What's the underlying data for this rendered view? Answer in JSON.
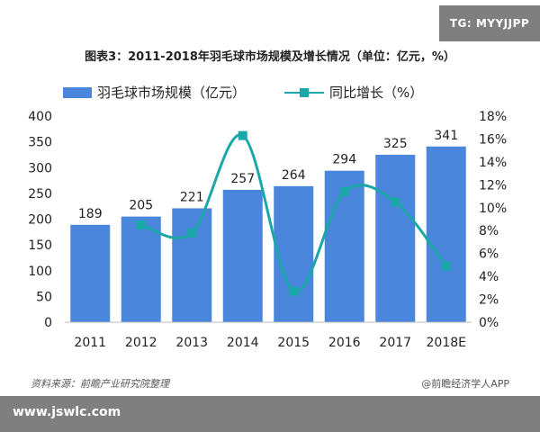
{
  "watermark_tag": "TG: MYYJJPP",
  "chart_data": {
    "type": "bar",
    "title": "图表3：2011-2018年羽毛球市场规模及增长情况（单位：亿元，%）",
    "categories": [
      "2011",
      "2012",
      "2013",
      "2014",
      "2015",
      "2016",
      "2017",
      "2018E"
    ],
    "series": [
      {
        "name": "羽毛球市场规模（亿元）",
        "type": "bar",
        "axis": "left",
        "values": [
          189,
          205,
          221,
          257,
          264,
          294,
          325,
          341
        ],
        "data_labels": [
          "189",
          "205",
          "221",
          "257",
          "264",
          "294",
          "325",
          "341"
        ],
        "color": "#4a86dc"
      },
      {
        "name": "同比增长（%）",
        "type": "line",
        "axis": "right",
        "values": [
          null,
          8.5,
          7.8,
          16.3,
          2.7,
          11.4,
          10.5,
          4.9
        ],
        "color": "#1aa7a7",
        "smooth": true
      }
    ],
    "y_left": {
      "min": 0,
      "max": 400,
      "ticks": [
        "0",
        "50",
        "100",
        "150",
        "200",
        "250",
        "300",
        "350",
        "400"
      ]
    },
    "y_right": {
      "min": 0,
      "max": 18,
      "ticks": [
        "0%",
        "2%",
        "4%",
        "6%",
        "8%",
        "10%",
        "12%",
        "14%",
        "16%",
        "18%"
      ]
    },
    "grid": false,
    "legend_position": "top"
  },
  "source_text": "资料来源：前瞻产业研究院整理",
  "brand_text": "@前瞻经济学人APP",
  "footer_url": "www.jswlc.com"
}
